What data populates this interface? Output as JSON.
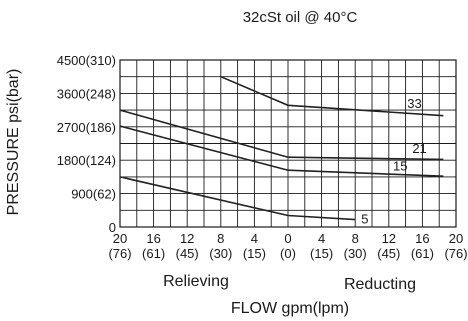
{
  "chart_data": {
    "type": "line",
    "title": "32cSt  oil @ 40°C",
    "ylabel": "PRESSURE psi(bar)",
    "xlabel": "FLOW gpm(lpm)",
    "region_labels": {
      "left": "Relieving",
      "right": "Reducting"
    },
    "x_ticks": [
      {
        "x": -20,
        "gpm": "20",
        "lpm": "(76)"
      },
      {
        "x": -16,
        "gpm": "16",
        "lpm": "(61)"
      },
      {
        "x": -12,
        "gpm": "12",
        "lpm": "(45)"
      },
      {
        "x": -8,
        "gpm": "8",
        "lpm": "(30)"
      },
      {
        "x": -4,
        "gpm": "4",
        "lpm": "(15)"
      },
      {
        "x": 0,
        "gpm": "0",
        "lpm": "(0)"
      },
      {
        "x": 4,
        "gpm": "4",
        "lpm": "(15)"
      },
      {
        "x": 8,
        "gpm": "8",
        "lpm": "(30)"
      },
      {
        "x": 12,
        "gpm": "12",
        "lpm": "(45)"
      },
      {
        "x": 16,
        "gpm": "16",
        "lpm": "(61)"
      },
      {
        "x": 20,
        "gpm": "20",
        "lpm": "(76)"
      }
    ],
    "y_ticks": [
      {
        "y": 0,
        "label": "0"
      },
      {
        "y": 900,
        "label": "900(62)"
      },
      {
        "y": 1800,
        "label": "1800(124)"
      },
      {
        "y": 2700,
        "label": "2700(186)"
      },
      {
        "y": 3600,
        "label": "3600(248)"
      },
      {
        "y": 4500,
        "label": "4500(310)"
      }
    ],
    "xlim": [
      -20,
      20
    ],
    "ylim": [
      0,
      4500
    ],
    "x_minor_step": 2,
    "y_minor_step": 450,
    "grid": true,
    "series": [
      {
        "name": "33",
        "points": [
          [
            -8,
            4050
          ],
          [
            0,
            3280
          ],
          [
            18.5,
            3000
          ]
        ]
      },
      {
        "name": "21",
        "points": [
          [
            -20,
            3150
          ],
          [
            0,
            1880
          ],
          [
            18.5,
            1820
          ]
        ]
      },
      {
        "name": "15",
        "points": [
          [
            -20,
            2720
          ],
          [
            0,
            1530
          ],
          [
            18.5,
            1370
          ]
        ]
      },
      {
        "name": "5",
        "points": [
          [
            -20,
            1350
          ],
          [
            0,
            310
          ],
          [
            8,
            200
          ]
        ]
      }
    ]
  }
}
